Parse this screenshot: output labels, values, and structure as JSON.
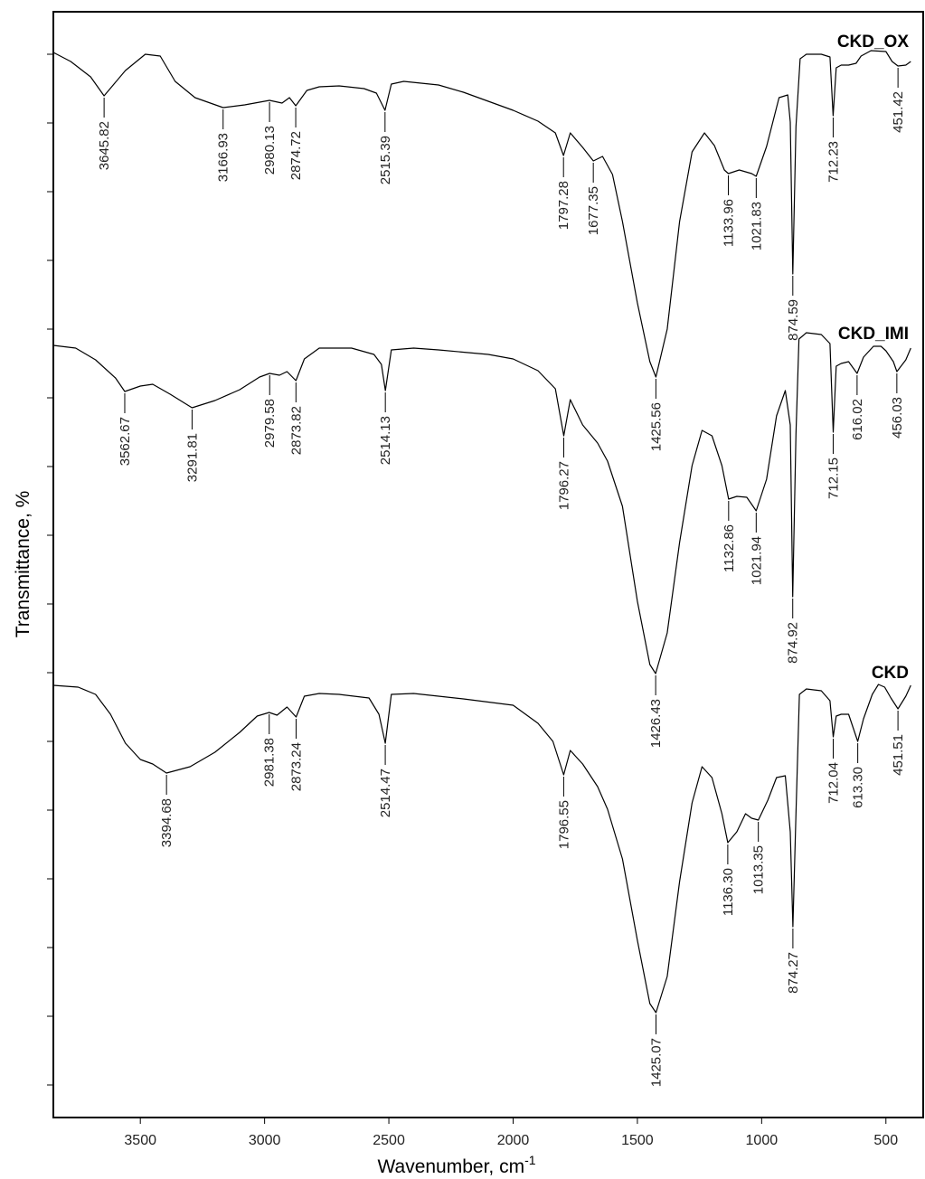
{
  "chart_data": {
    "type": "line",
    "xlabel": "Wavenumber, cm",
    "xlabel_superscript": "-1",
    "ylabel": "Transmittance, %",
    "xlim": [
      3850,
      350
    ],
    "x_reversed": true,
    "xticks": [
      3500,
      3000,
      2500,
      2000,
      1500,
      1000,
      500
    ],
    "grid": false,
    "series": [
      {
        "name": "CKD_OX",
        "label_position": "right",
        "spectrum": [
          [
            3850,
            58
          ],
          [
            3780,
            68
          ],
          [
            3700,
            85
          ],
          [
            3645.82,
            106
          ],
          [
            3560,
            78
          ],
          [
            3480,
            60
          ],
          [
            3420,
            62
          ],
          [
            3360,
            90
          ],
          [
            3280,
            108
          ],
          [
            3166.93,
            119
          ],
          [
            3080,
            116
          ],
          [
            2980.13,
            111
          ],
          [
            2930,
            114
          ],
          [
            2900,
            108
          ],
          [
            2874.72,
            117
          ],
          [
            2830,
            100
          ],
          [
            2780,
            96
          ],
          [
            2700,
            95
          ],
          [
            2600,
            98
          ],
          [
            2550,
            103
          ],
          [
            2515.39,
            122
          ],
          [
            2490,
            93
          ],
          [
            2440,
            90
          ],
          [
            2300,
            94
          ],
          [
            2200,
            102
          ],
          [
            2100,
            112
          ],
          [
            2000,
            122
          ],
          [
            1900,
            134
          ],
          [
            1830,
            147
          ],
          [
            1797.28,
            172
          ],
          [
            1770,
            147
          ],
          [
            1720,
            163
          ],
          [
            1677.35,
            178
          ],
          [
            1640,
            173
          ],
          [
            1600,
            193
          ],
          [
            1560,
            245
          ],
          [
            1500,
            335
          ],
          [
            1450,
            400
          ],
          [
            1425.56,
            417
          ],
          [
            1380,
            364
          ],
          [
            1330,
            245
          ],
          [
            1280,
            168
          ],
          [
            1230,
            147
          ],
          [
            1190,
            161
          ],
          [
            1150,
            188
          ],
          [
            1133.96,
            192
          ],
          [
            1090,
            188
          ],
          [
            1040,
            192
          ],
          [
            1021.83,
            195
          ],
          [
            980,
            162
          ],
          [
            930,
            108
          ],
          [
            895,
            105
          ],
          [
            885,
            135
          ],
          [
            874.59,
            303
          ],
          [
            862,
            140
          ],
          [
            845,
            65
          ],
          [
            820,
            60
          ],
          [
            760,
            60
          ],
          [
            725,
            63
          ],
          [
            712.23,
            128
          ],
          [
            700,
            75
          ],
          [
            680,
            72
          ],
          [
            650,
            72
          ],
          [
            620,
            70
          ],
          [
            600,
            62
          ],
          [
            560,
            56
          ],
          [
            500,
            57
          ],
          [
            475,
            68
          ],
          [
            451.42,
            73
          ],
          [
            420,
            72
          ],
          [
            400,
            68
          ]
        ],
        "peaks": [
          3645.82,
          3166.93,
          2980.13,
          2874.72,
          2515.39,
          1797.28,
          1677.35,
          1425.56,
          1133.96,
          1021.83,
          874.59,
          712.23,
          451.42
        ],
        "peak_labels": [
          "3645.82",
          "3166.93",
          "2980.13",
          "2874.72",
          "2515.39",
          "1797.28",
          "1677.35",
          "1425.56",
          "1133.96",
          "1021.83",
          "874.59",
          "712.23",
          "451.42"
        ]
      },
      {
        "name": "CKD_IMI",
        "label_position": "right",
        "spectrum": [
          [
            3850,
            382
          ],
          [
            3760,
            385
          ],
          [
            3680,
            398
          ],
          [
            3600,
            418
          ],
          [
            3562.67,
            433
          ],
          [
            3500,
            427
          ],
          [
            3450,
            425
          ],
          [
            3380,
            436
          ],
          [
            3291.81,
            451
          ],
          [
            3200,
            443
          ],
          [
            3100,
            431
          ],
          [
            3020,
            417
          ],
          [
            2979.58,
            413
          ],
          [
            2940,
            415
          ],
          [
            2910,
            411
          ],
          [
            2873.82,
            421
          ],
          [
            2840,
            397
          ],
          [
            2780,
            385
          ],
          [
            2650,
            385
          ],
          [
            2560,
            392
          ],
          [
            2530,
            403
          ],
          [
            2514.13,
            432
          ],
          [
            2490,
            387
          ],
          [
            2400,
            385
          ],
          [
            2300,
            387
          ],
          [
            2100,
            392
          ],
          [
            2000,
            397
          ],
          [
            1900,
            410
          ],
          [
            1830,
            430
          ],
          [
            1796.27,
            482
          ],
          [
            1770,
            442
          ],
          [
            1720,
            470
          ],
          [
            1660,
            490
          ],
          [
            1620,
            510
          ],
          [
            1560,
            560
          ],
          [
            1500,
            665
          ],
          [
            1450,
            735
          ],
          [
            1426.43,
            745
          ],
          [
            1380,
            700
          ],
          [
            1330,
            600
          ],
          [
            1280,
            515
          ],
          [
            1240,
            476
          ],
          [
            1200,
            482
          ],
          [
            1160,
            515
          ],
          [
            1132.86,
            552
          ],
          [
            1100,
            549
          ],
          [
            1060,
            550
          ],
          [
            1021.94,
            565
          ],
          [
            980,
            530
          ],
          [
            940,
            460
          ],
          [
            905,
            432
          ],
          [
            885,
            470
          ],
          [
            874.92,
            660
          ],
          [
            862,
            480
          ],
          [
            850,
            375
          ],
          [
            820,
            368
          ],
          [
            760,
            370
          ],
          [
            725,
            380
          ],
          [
            712.15,
            478
          ],
          [
            700,
            405
          ],
          [
            680,
            402
          ],
          [
            650,
            400
          ],
          [
            616.02,
            413
          ],
          [
            590,
            395
          ],
          [
            550,
            383
          ],
          [
            520,
            383
          ],
          [
            500,
            388
          ],
          [
            470,
            400
          ],
          [
            456.03,
            411
          ],
          [
            420,
            398
          ],
          [
            400,
            385
          ]
        ],
        "peaks": [
          3562.67,
          3291.81,
          2979.58,
          2873.82,
          2514.13,
          1796.27,
          1426.43,
          1132.86,
          1021.94,
          874.92,
          712.15,
          616.02,
          456.03
        ],
        "peak_labels": [
          "3562.67",
          "3291.81",
          "2979.58",
          "2873.82",
          "2514.13",
          "1796.27",
          "1426.43",
          "1132.86",
          "1021.94",
          "874.92",
          "712.15",
          "616.02",
          "456.03"
        ]
      },
      {
        "name": "CKD",
        "label_position": "right",
        "spectrum": [
          [
            3850,
            758
          ],
          [
            3750,
            760
          ],
          [
            3680,
            768
          ],
          [
            3620,
            790
          ],
          [
            3560,
            822
          ],
          [
            3500,
            840
          ],
          [
            3450,
            845
          ],
          [
            3394.68,
            855
          ],
          [
            3300,
            848
          ],
          [
            3200,
            832
          ],
          [
            3100,
            810
          ],
          [
            3030,
            792
          ],
          [
            2981.38,
            788
          ],
          [
            2950,
            791
          ],
          [
            2910,
            782
          ],
          [
            2873.24,
            793
          ],
          [
            2840,
            770
          ],
          [
            2780,
            767
          ],
          [
            2700,
            768
          ],
          [
            2580,
            772
          ],
          [
            2540,
            790
          ],
          [
            2514.47,
            822
          ],
          [
            2490,
            768
          ],
          [
            2400,
            767
          ],
          [
            2200,
            773
          ],
          [
            2000,
            780
          ],
          [
            1900,
            800
          ],
          [
            1840,
            820
          ],
          [
            1796.55,
            857
          ],
          [
            1770,
            830
          ],
          [
            1720,
            845
          ],
          [
            1660,
            870
          ],
          [
            1620,
            895
          ],
          [
            1560,
            950
          ],
          [
            1500,
            1040
          ],
          [
            1450,
            1110
          ],
          [
            1425.07,
            1120
          ],
          [
            1380,
            1080
          ],
          [
            1330,
            975
          ],
          [
            1280,
            888
          ],
          [
            1240,
            848
          ],
          [
            1200,
            860
          ],
          [
            1160,
            900
          ],
          [
            1136.3,
            932
          ],
          [
            1100,
            920
          ],
          [
            1065,
            900
          ],
          [
            1040,
            905
          ],
          [
            1013.35,
            907
          ],
          [
            975,
            885
          ],
          [
            940,
            860
          ],
          [
            905,
            858
          ],
          [
            885,
            920
          ],
          [
            874.27,
            1025
          ],
          [
            862,
            900
          ],
          [
            848,
            768
          ],
          [
            820,
            762
          ],
          [
            760,
            764
          ],
          [
            725,
            775
          ],
          [
            712.04,
            815
          ],
          [
            700,
            792
          ],
          [
            680,
            790
          ],
          [
            650,
            790
          ],
          [
            613.3,
            820
          ],
          [
            590,
            795
          ],
          [
            555,
            768
          ],
          [
            530,
            757
          ],
          [
            505,
            760
          ],
          [
            480,
            772
          ],
          [
            451.51,
            784
          ],
          [
            420,
            770
          ],
          [
            400,
            758
          ]
        ],
        "peaks": [
          3394.68,
          2981.38,
          2873.24,
          2514.47,
          1796.55,
          1425.07,
          1136.3,
          1013.35,
          874.27,
          712.04,
          613.3,
          451.51
        ],
        "peak_labels": [
          "3394.68",
          "2981.38",
          "2873.24",
          "2514.47",
          "1796.55",
          "1425.07",
          "1136.30",
          "1013.35",
          "874.27",
          "712.04",
          "613.30",
          "451.51"
        ]
      }
    ]
  }
}
